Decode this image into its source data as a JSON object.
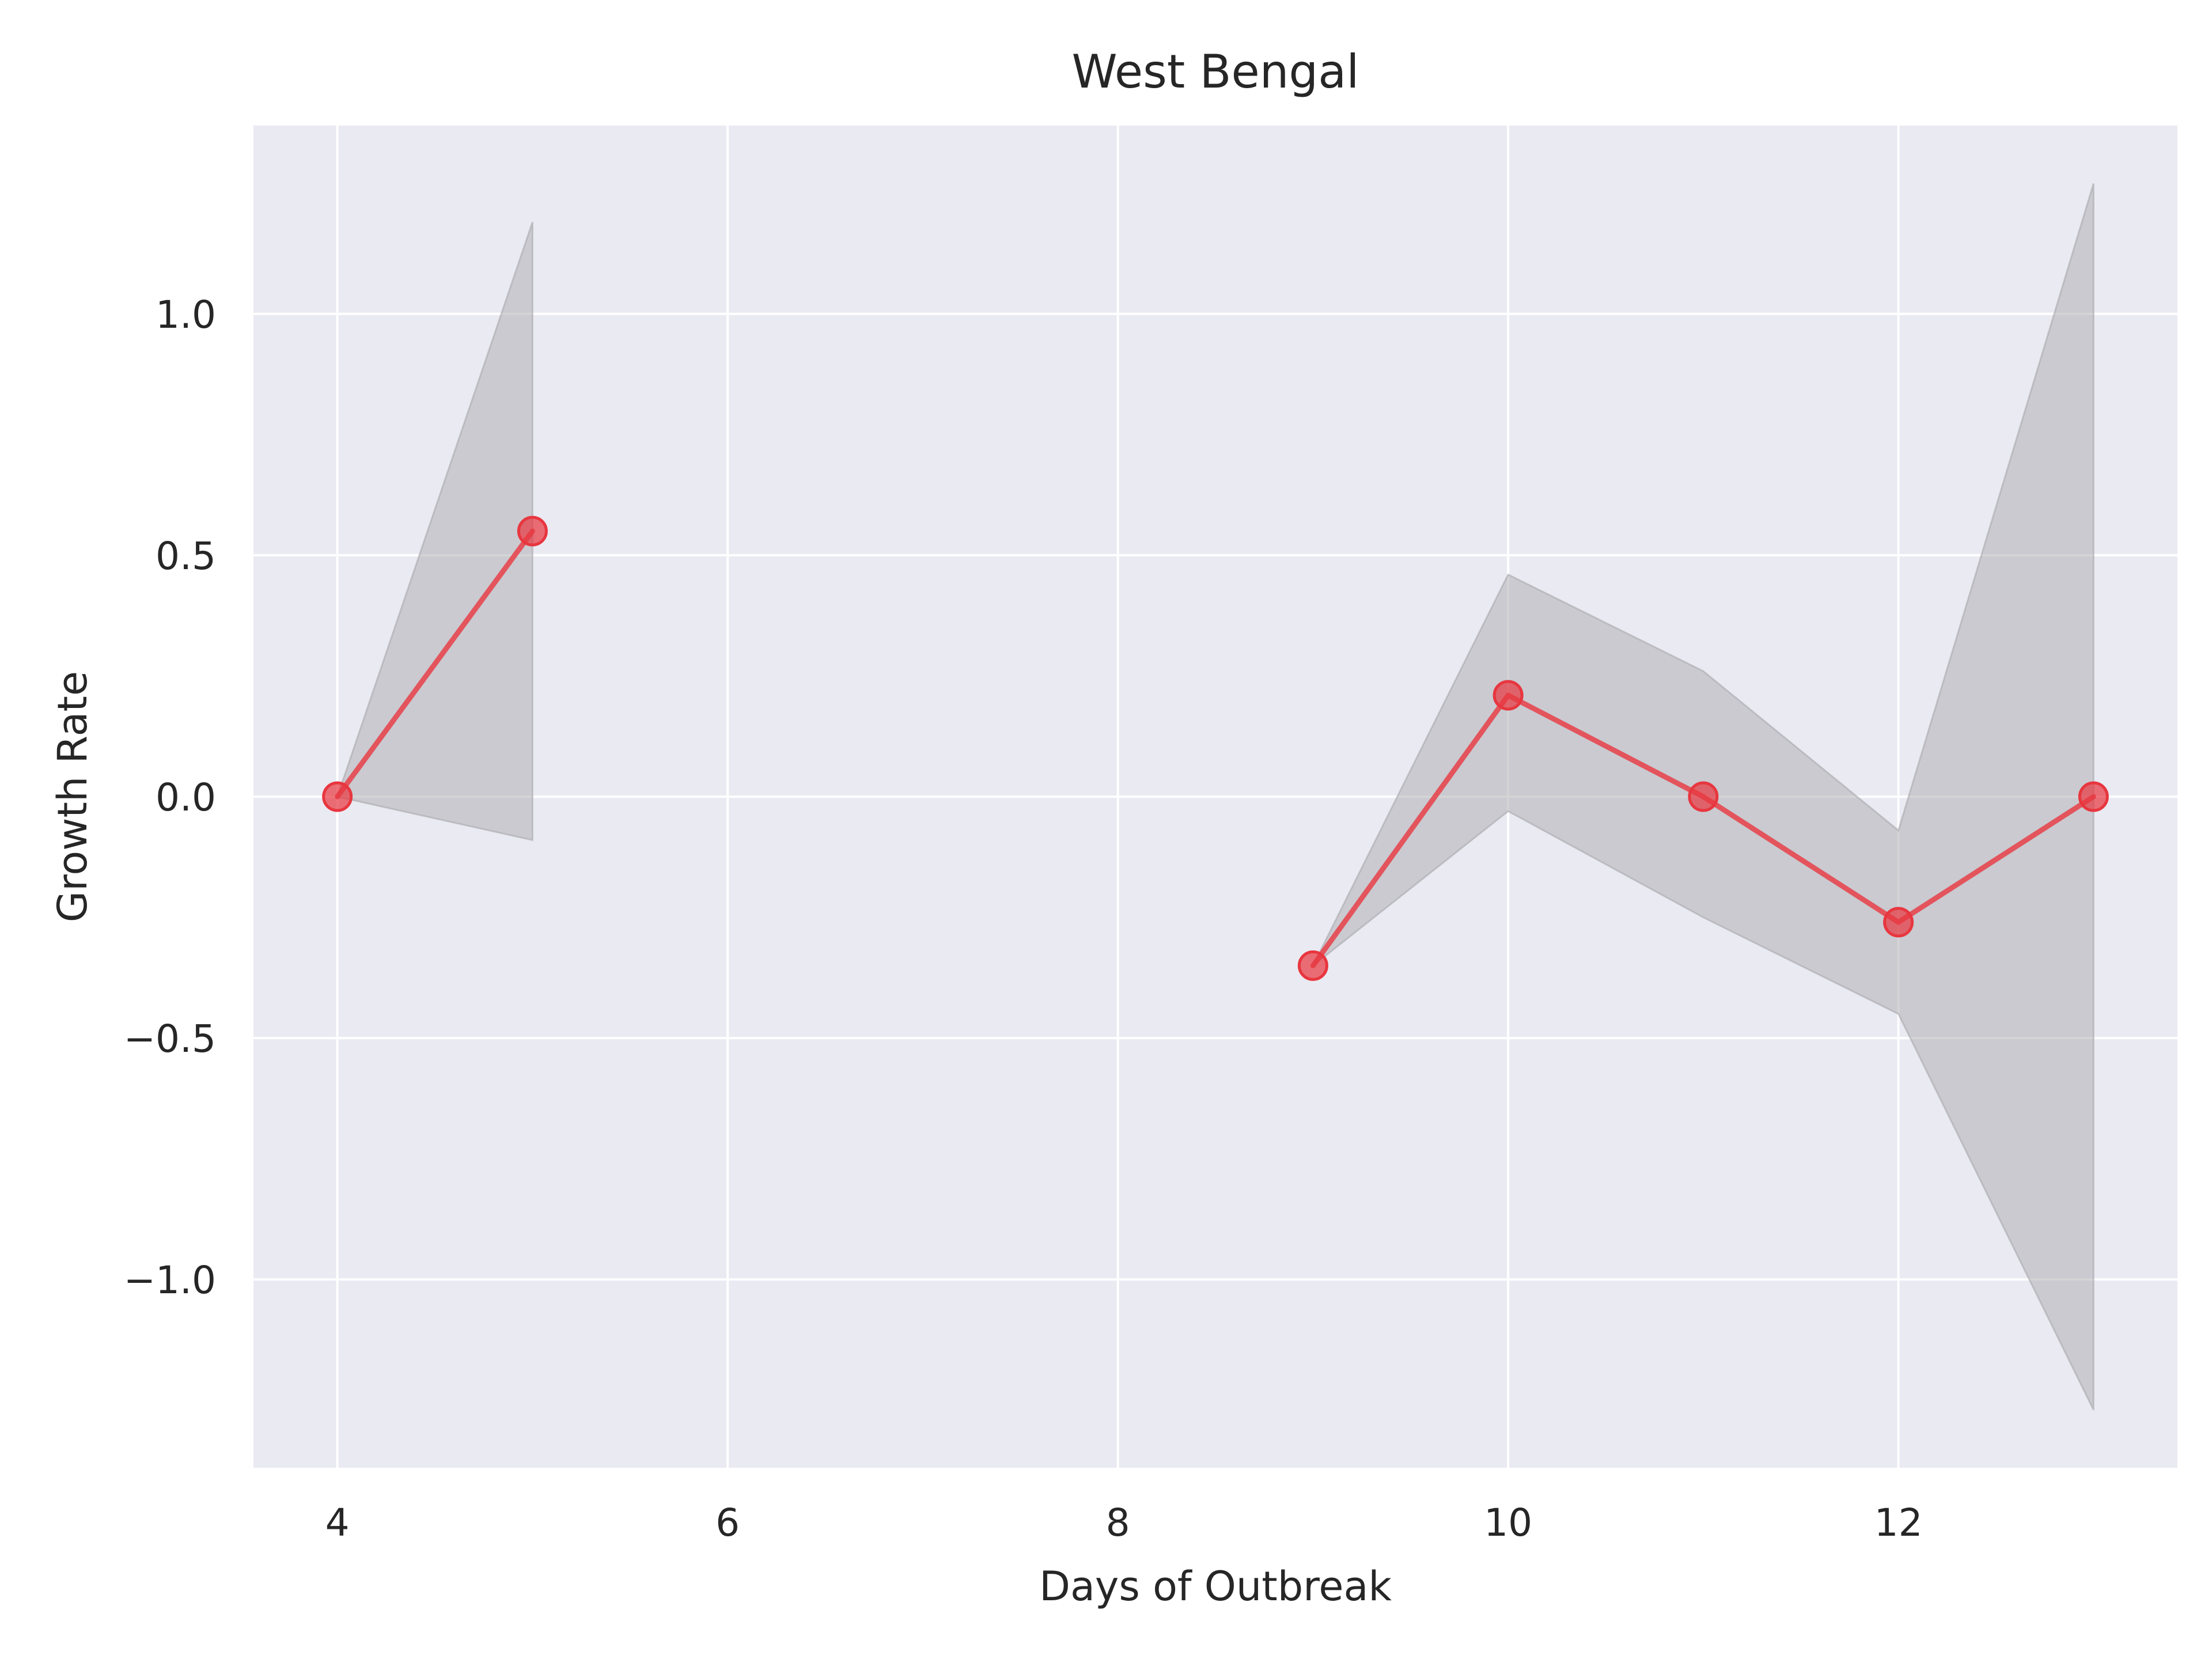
{
  "chart_data": {
    "type": "line",
    "title": "West Bengal",
    "xlabel": "Days of Outbreak",
    "ylabel": "Growth Rate",
    "xlim": [
      3.57,
      13.43
    ],
    "ylim": [
      -1.39,
      1.39
    ],
    "x_ticks": [
      4,
      6,
      8,
      10,
      12
    ],
    "x_tick_labels": [
      "4",
      "6",
      "8",
      "10",
      "12"
    ],
    "y_ticks": [
      1.0,
      0.5,
      0.0,
      -0.5,
      -1.0
    ],
    "y_tick_labels": [
      "1.0",
      "0.5",
      "0.0",
      "−0.5",
      "−1.0"
    ],
    "grid": true,
    "background": "#eaeaf2",
    "grid_color": "#ffffff",
    "line_color": "#e8363f",
    "band_color": "#a9a9ae",
    "series": [
      {
        "segments": [
          {
            "x": [
              4,
              5
            ],
            "y": [
              0.0,
              0.55
            ],
            "lower": [
              0.0,
              -0.09
            ],
            "upper": [
              0.0,
              1.19
            ]
          },
          {
            "x": [
              9,
              10,
              11,
              12,
              13
            ],
            "y": [
              -0.35,
              0.21,
              0.0,
              -0.26,
              0.0
            ],
            "lower": [
              -0.35,
              -0.03,
              -0.25,
              -0.45,
              -1.27
            ],
            "upper": [
              -0.35,
              0.46,
              0.26,
              -0.07,
              1.27
            ]
          }
        ]
      }
    ]
  }
}
